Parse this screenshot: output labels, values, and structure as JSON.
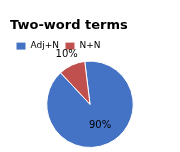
{
  "chart_data": {
    "type": "pie",
    "title": "Two-word terms",
    "categories": [
      "Adj+N",
      "N+N"
    ],
    "values": [
      90,
      10
    ],
    "value_labels": [
      "90%",
      "10%"
    ],
    "colors": [
      "#4472C4",
      "#C0504D"
    ],
    "data_labels": true,
    "legend": "upper left"
  }
}
